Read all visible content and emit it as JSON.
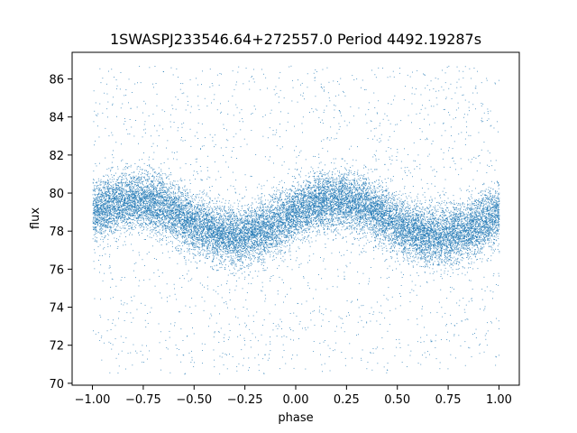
{
  "chart_data": {
    "type": "scatter",
    "title": "1SWASPJ233546.64+272557.0 Period 4492.19287s",
    "xlabel": "phase",
    "ylabel": "flux",
    "xlim": [
      -1.1,
      1.1
    ],
    "ylim": [
      69.9,
      87.4
    ],
    "xticks": [
      -1.0,
      -0.75,
      -0.5,
      -0.25,
      0.0,
      0.25,
      0.5,
      0.75,
      1.0
    ],
    "xtick_labels": [
      "−1.00",
      "−0.75",
      "−0.50",
      "−0.25",
      "0.00",
      "0.25",
      "0.50",
      "0.75",
      "1.00"
    ],
    "yticks": [
      70,
      72,
      74,
      76,
      78,
      80,
      82,
      84,
      86
    ],
    "ytick_labels": [
      "70",
      "72",
      "74",
      "76",
      "78",
      "80",
      "82",
      "84",
      "86"
    ],
    "grid": false,
    "legend": "none",
    "marker_color": "#1f77b4",
    "series": [
      {
        "description_points": "phase-folded light curve, sinusoidal, period 1 in phase",
        "phase_range": [
          -1.0,
          1.0
        ],
        "mean_flux": 78.7,
        "amplitude": 0.95,
        "maxima_phase": [
          -0.8,
          0.2
        ],
        "minima_phase": [
          -0.3,
          0.7
        ],
        "core_scatter_sigma": 0.75,
        "outlier_range": [
          70.5,
          86.7
        ],
        "approx_points": 20000
      }
    ]
  }
}
